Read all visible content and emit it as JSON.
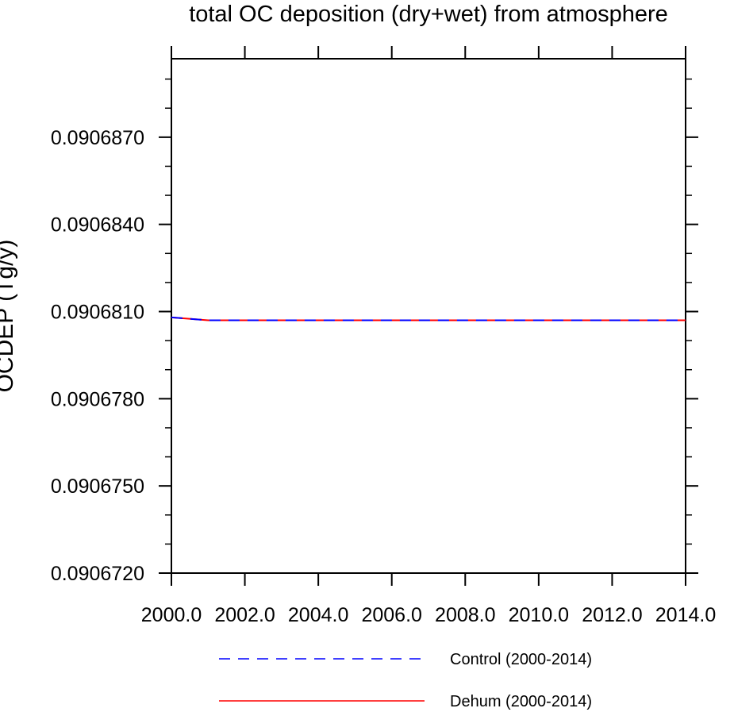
{
  "chart_data": {
    "type": "line",
    "title": "total OC deposition (dry+wet) from atmosphere",
    "ylabel": "OCDEP (Tg/y)",
    "xlabel": "",
    "xlim": [
      2000.0,
      2014.0
    ],
    "ylim": [
      0.090672,
      0.0906897
    ],
    "x_ticks": [
      2000.0,
      2002.0,
      2004.0,
      2006.0,
      2008.0,
      2010.0,
      2012.0,
      2014.0
    ],
    "x_tick_labels": [
      "2000.0",
      "2002.0",
      "2004.0",
      "2006.0",
      "2008.0",
      "2010.0",
      "2012.0",
      "2014.0"
    ],
    "y_ticks": [
      0.090672,
      0.090675,
      0.090678,
      0.090681,
      0.090684,
      0.090687
    ],
    "y_tick_labels": [
      "0.0906720",
      "0.0906750",
      "0.0906780",
      "0.0906810",
      "0.0906840",
      "0.0906870"
    ],
    "grid": false,
    "legend": "bottom",
    "x": [
      2000,
      2001,
      2002,
      2003,
      2004,
      2005,
      2006,
      2007,
      2008,
      2009,
      2010,
      2011,
      2012,
      2013,
      2014
    ],
    "series": [
      {
        "name": "Control (2000-2014)",
        "color": "#0000ff",
        "dash": "dashed",
        "values": [
          0.0906808,
          0.0906807,
          0.0906807,
          0.0906807,
          0.0906807,
          0.0906807,
          0.0906807,
          0.0906807,
          0.0906807,
          0.0906807,
          0.0906807,
          0.0906807,
          0.0906807,
          0.0906807,
          0.0906807
        ]
      },
      {
        "name": "Dehum (2000-2014)",
        "color": "#ff0000",
        "dash": "solid",
        "values": [
          0.0906808,
          0.0906807,
          0.0906807,
          0.0906807,
          0.0906807,
          0.0906807,
          0.0906807,
          0.0906807,
          0.0906807,
          0.0906807,
          0.0906807,
          0.0906807,
          0.0906807,
          0.0906807,
          0.0906807
        ]
      }
    ]
  }
}
